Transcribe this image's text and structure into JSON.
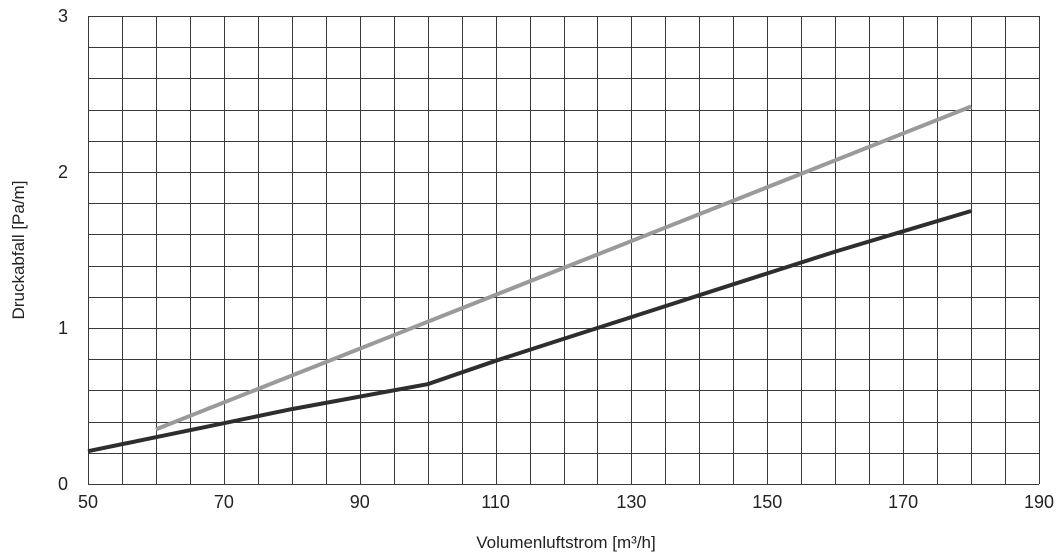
{
  "chart_data": {
    "type": "line",
    "title": "",
    "xlabel": "Volumenluftstrom [m³/h]",
    "ylabel": "Druckabfall [Pa/m]",
    "xlim": [
      50,
      190
    ],
    "ylim": [
      0,
      3
    ],
    "x_ticks": [
      "50",
      "70",
      "90",
      "110",
      "130",
      "150",
      "170",
      "190"
    ],
    "y_ticks": [
      "0",
      "1",
      "2",
      "3"
    ],
    "grid": true,
    "legend": "none",
    "series": [
      {
        "color": "#9a9a9a",
        "x": [
          60,
          180
        ],
        "y": [
          0.35,
          2.42
        ]
      },
      {
        "color": "#2e2e2e",
        "x": [
          50,
          60,
          70,
          80,
          90,
          100,
          110,
          120,
          130,
          140,
          150,
          160,
          170,
          180
        ],
        "y": [
          0.21,
          0.3,
          0.39,
          0.48,
          0.56,
          0.64,
          0.79,
          0.93,
          1.07,
          1.21,
          1.35,
          1.49,
          1.62,
          1.75
        ]
      }
    ]
  }
}
